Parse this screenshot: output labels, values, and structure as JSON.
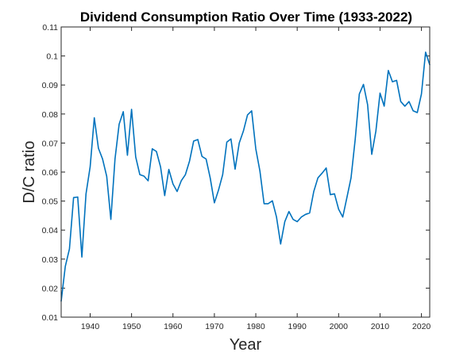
{
  "chart_data": {
    "type": "line",
    "title": "Dividend Consumption Ratio Over Time (1933-2022)",
    "xlabel": "Year",
    "ylabel": "D/C ratio",
    "xlim": [
      1933,
      2022
    ],
    "ylim": [
      0.01,
      0.11
    ],
    "xticks": [
      1940,
      1950,
      1960,
      1970,
      1980,
      1990,
      2000,
      2010,
      2020
    ],
    "yticks": [
      0.01,
      0.02,
      0.03,
      0.04,
      0.05,
      0.06,
      0.07,
      0.08,
      0.09,
      0.1,
      0.11
    ],
    "grid": false,
    "legend": "none",
    "line_color": "#0072BD",
    "series": [
      {
        "x": [
          1933,
          1934,
          1935,
          1936,
          1937,
          1938,
          1939,
          1940,
          1941,
          1942,
          1943,
          1944,
          1945,
          1946,
          1947,
          1948,
          1949,
          1950,
          1951,
          1952,
          1953,
          1954,
          1955,
          1956,
          1957,
          1958,
          1959,
          1960,
          1961,
          1962,
          1963,
          1964,
          1965,
          1966,
          1967,
          1968,
          1969,
          1970,
          1971,
          1972,
          1973,
          1974,
          1975,
          1976,
          1977,
          1978,
          1979,
          1980,
          1981,
          1982,
          1983,
          1984,
          1985,
          1986,
          1987,
          1988,
          1989,
          1990,
          1991,
          1992,
          1993,
          1994,
          1995,
          1996,
          1997,
          1998,
          1999,
          2000,
          2001,
          2002,
          2003,
          2004,
          2005,
          2006,
          2007,
          2008,
          2009,
          2010,
          2011,
          2012,
          2013,
          2014,
          2015,
          2016,
          2017,
          2018,
          2019,
          2020,
          2021,
          2022
        ],
        "values": [
          0.0155,
          0.0275,
          0.0335,
          0.0512,
          0.0514,
          0.0307,
          0.0525,
          0.0618,
          0.0787,
          0.0682,
          0.0645,
          0.0585,
          0.0437,
          0.0645,
          0.0765,
          0.0808,
          0.0658,
          0.0816,
          0.0652,
          0.0591,
          0.0586,
          0.057,
          0.068,
          0.0671,
          0.0618,
          0.0519,
          0.0609,
          0.0559,
          0.0533,
          0.057,
          0.0591,
          0.0638,
          0.0707,
          0.0712,
          0.0654,
          0.0645,
          0.0579,
          0.0494,
          0.0538,
          0.0591,
          0.0703,
          0.0714,
          0.061,
          0.07,
          0.0741,
          0.0797,
          0.0811,
          0.068,
          0.0603,
          0.0491,
          0.0491,
          0.0501,
          0.0445,
          0.0352,
          0.0429,
          0.0464,
          0.0437,
          0.0429,
          0.0445,
          0.0454,
          0.0459,
          0.0533,
          0.058,
          0.0596,
          0.0614,
          0.0522,
          0.0525,
          0.0472,
          0.0445,
          0.0512,
          0.058,
          0.0712,
          0.0869,
          0.0902,
          0.0832,
          0.0661,
          0.0741,
          0.0872,
          0.0827,
          0.095,
          0.0911,
          0.0916,
          0.0843,
          0.0827,
          0.0843,
          0.0811,
          0.0805,
          0.0869,
          0.1013,
          0.097
        ]
      }
    ]
  }
}
